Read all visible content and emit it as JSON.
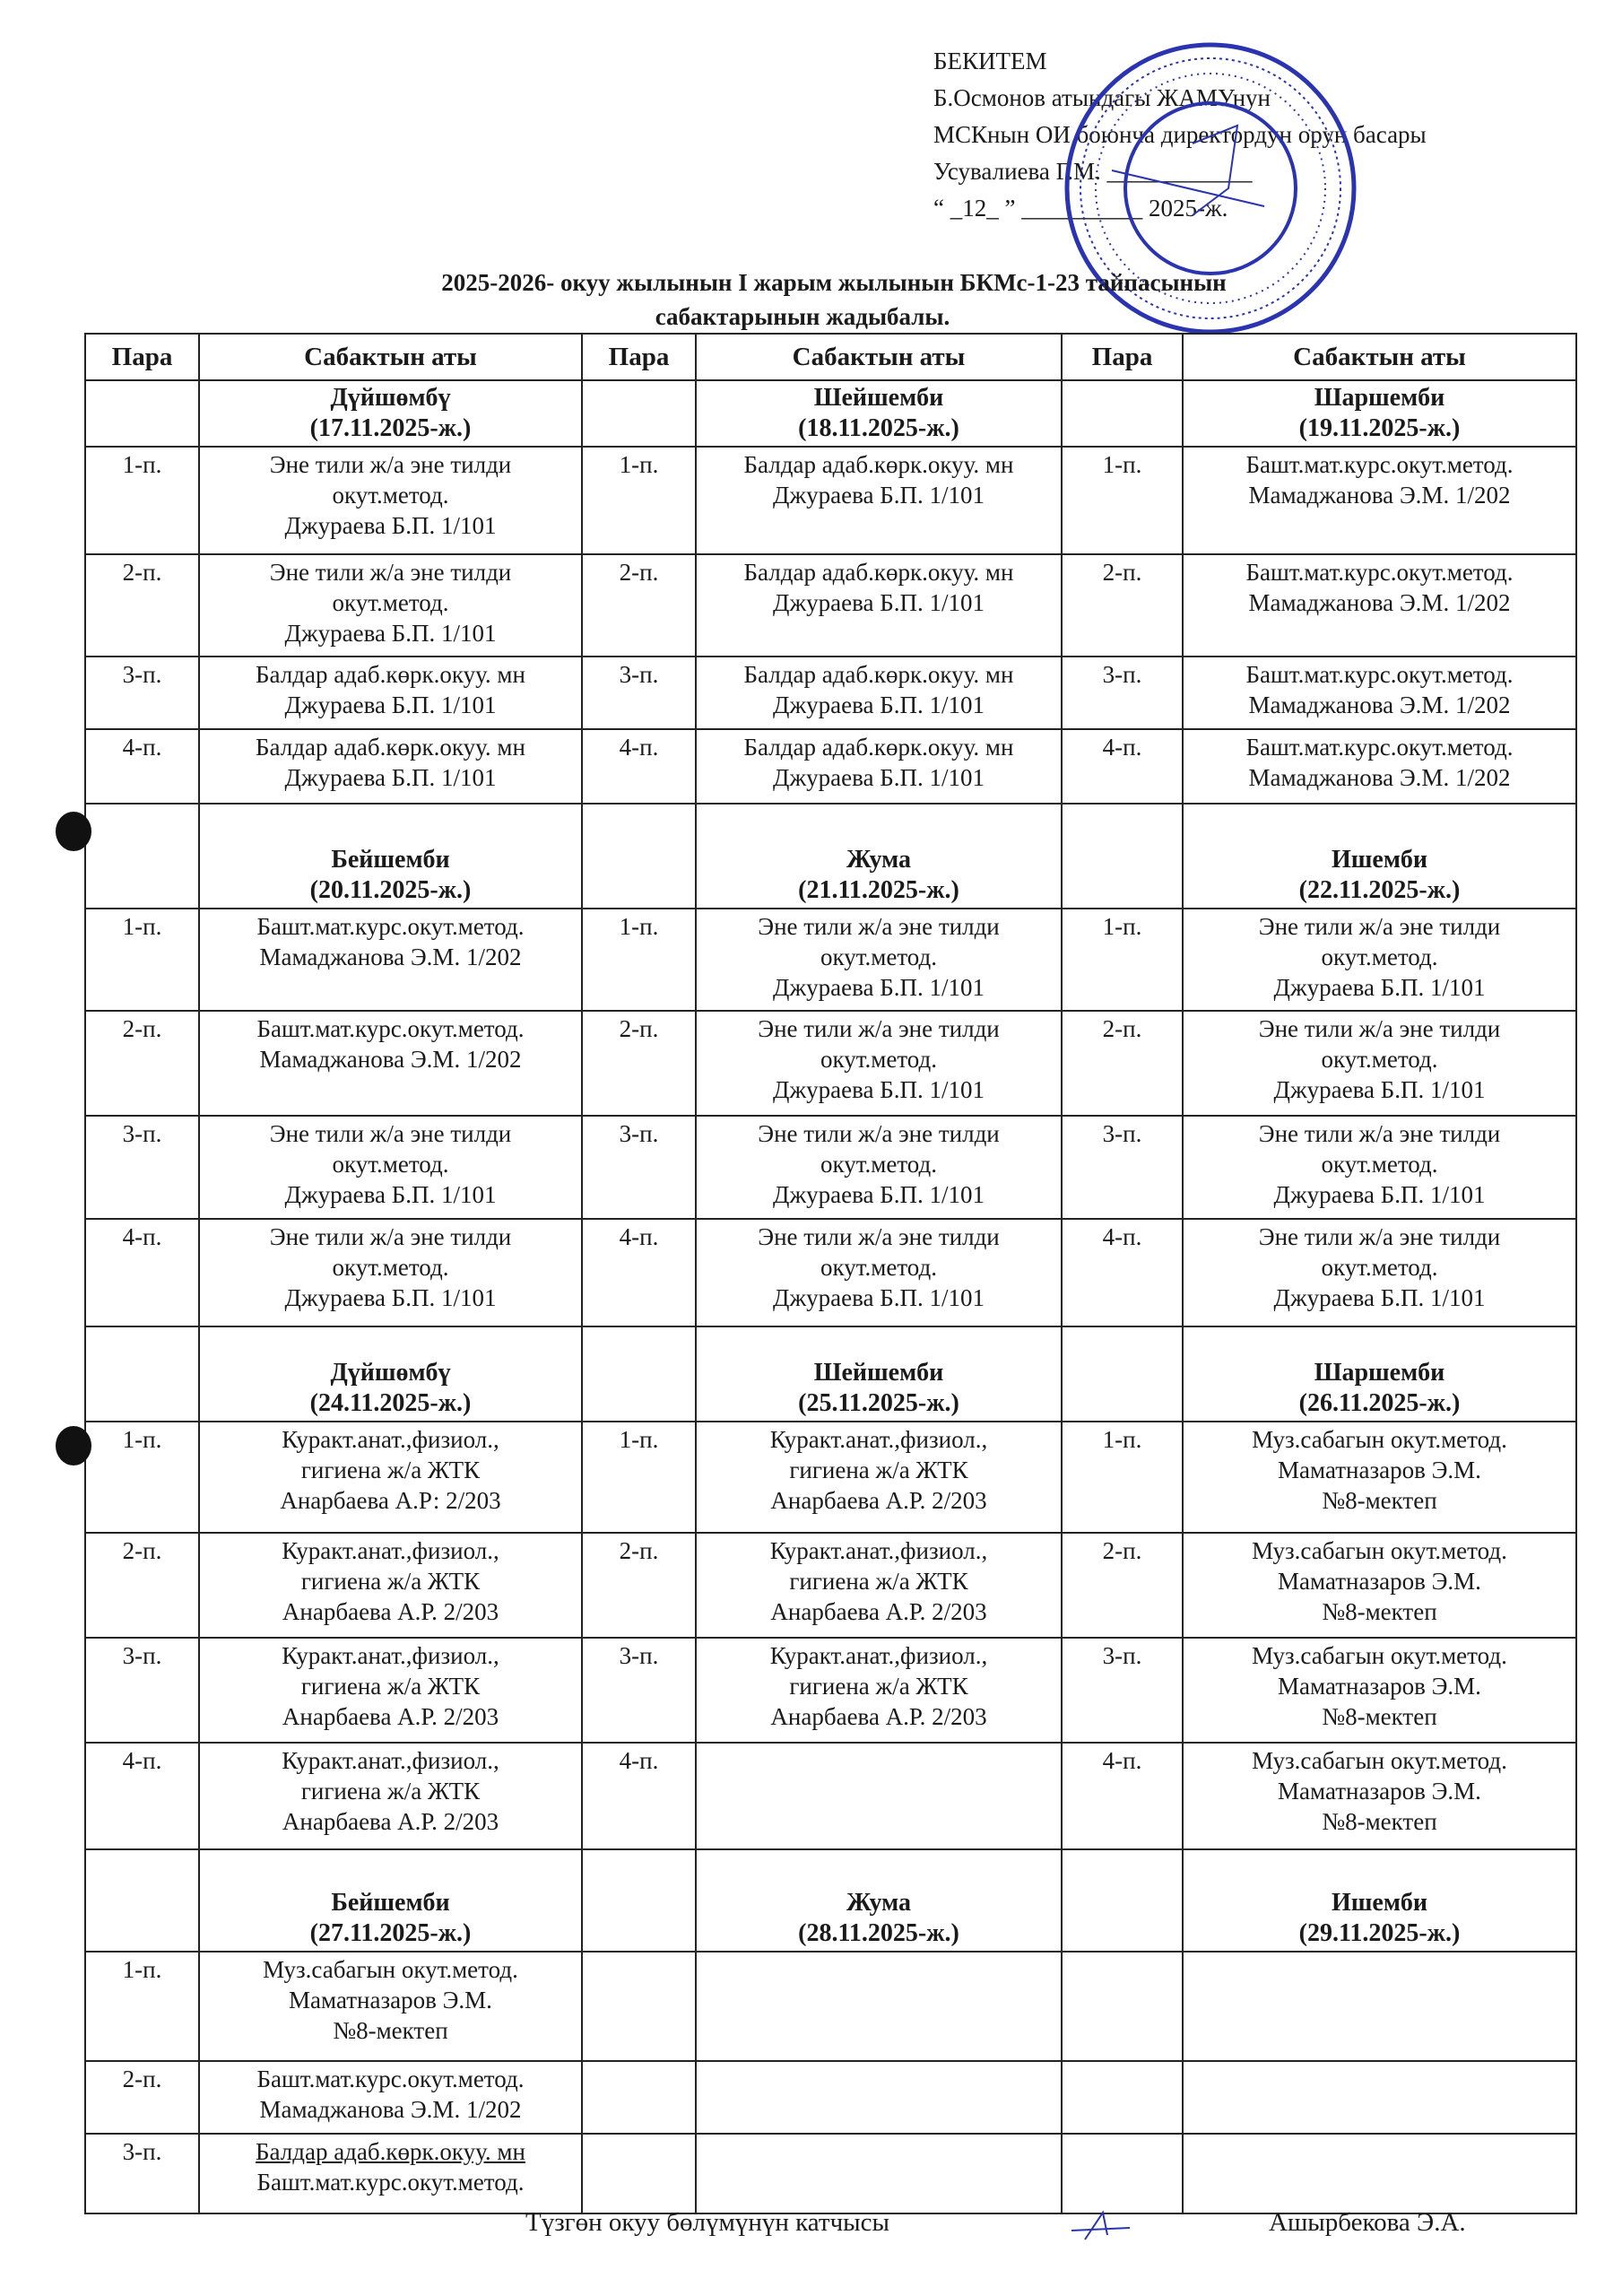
{
  "approval": {
    "lines": [
      "БЕКИТЕМ",
      "Б.Осмонов атындагы ЖАМУнун",
      "МСКнын  ОИ боюнча директордун орун басары",
      "Усувалиева Г.М. ____________",
      "“ _12_ ” __________ 2025-ж."
    ]
  },
  "title": {
    "line1": "2025-2026- окуу жылынын  I жарым жылынын БКМс-1-23 тайпасынын",
    "line2": "сабактарынын  жадыбалы."
  },
  "headers": [
    "Пара",
    "Сабактын аты",
    "Пара",
    "Сабактын аты",
    "Пара",
    "Сабактын аты"
  ],
  "blocks": [
    {
      "days": [
        {
          "name": "Дүйшөмбү",
          "date": "(17.11.2025-ж.)"
        },
        {
          "name": "Шейшемби",
          "date": "(18.11.2025-ж.)"
        },
        {
          "name": "Шаршемби",
          "date": "(19.11.2025-ж.)"
        }
      ],
      "rows": [
        [
          {
            "para": "1-п.",
            "lines": [
              "Эне тили ж/а эне тилди",
              "окут.метод.",
              "Джураева Б.П.  1/101"
            ]
          },
          {
            "para": "1-п.",
            "lines": [
              "Балдар адаб.көрк.окуу. мн",
              "Джураева Б.П.  1/101"
            ]
          },
          {
            "para": "1-п.",
            "lines": [
              "Башт.мат.курс.окут.метод.",
              "Мамаджанова Э.М.  1/202"
            ]
          }
        ],
        [
          {
            "para": "2-п.",
            "lines": [
              "Эне тили ж/а эне тилди",
              "окут.метод.",
              "Джураева Б.П.  1/101"
            ]
          },
          {
            "para": "2-п.",
            "lines": [
              "Балдар адаб.көрк.окуу. мн",
              "Джураева Б.П.  1/101"
            ]
          },
          {
            "para": "2-п.",
            "lines": [
              "Башт.мат.курс.окут.метод.",
              "Мамаджанова Э.М.  1/202"
            ]
          }
        ],
        [
          {
            "para": "3-п.",
            "lines": [
              "Балдар адаб.көрк.окуу. мн",
              "Джураева Б.П.  1/101"
            ]
          },
          {
            "para": "3-п.",
            "lines": [
              "Балдар адаб.көрк.окуу. мн",
              "Джураева Б.П.  1/101"
            ]
          },
          {
            "para": "3-п.",
            "lines": [
              "Башт.мат.курс.окут.метод.",
              "Мамаджанова Э.М.  1/202"
            ]
          }
        ],
        [
          {
            "para": "4-п.",
            "lines": [
              "Балдар адаб.көрк.окуу. мн",
              "Джураева Б.П.  1/101"
            ]
          },
          {
            "para": "4-п.",
            "lines": [
              "Балдар адаб.көрк.окуу. мн",
              "Джураева Б.П.  1/101"
            ]
          },
          {
            "para": "4-п.",
            "lines": [
              "Башт.мат.курс.окут.метод.",
              "Мамаджанова Э.М.  1/202"
            ]
          }
        ]
      ]
    },
    {
      "days": [
        {
          "name": "Бейшемби",
          "date": "(20.11.2025-ж.)"
        },
        {
          "name": "Жума",
          "date": "(21.11.2025-ж.)"
        },
        {
          "name": "Ишемби",
          "date": "(22.11.2025-ж.)"
        }
      ],
      "rows": [
        [
          {
            "para": "1-п.",
            "lines": [
              "Башт.мат.курс.окут.метод.",
              "Мамаджанова Э.М.  1/202"
            ]
          },
          {
            "para": "1-п.",
            "lines": [
              "Эне тили ж/а эне тилди",
              "окут.метод.",
              "Джураева Б.П.  1/101"
            ]
          },
          {
            "para": "1-п.",
            "lines": [
              "Эне тили ж/а эне тилди",
              "окут.метод.",
              "Джураева Б.П.  1/101"
            ]
          }
        ],
        [
          {
            "para": "2-п.",
            "lines": [
              "Башт.мат.курс.окут.метод.",
              "Мамаджанова Э.М.  1/202"
            ]
          },
          {
            "para": "2-п.",
            "lines": [
              "Эне тили ж/а эне тилди",
              "окут.метод.",
              "Джураева Б.П.  1/101"
            ]
          },
          {
            "para": "2-п.",
            "lines": [
              "Эне тили ж/а эне тилди",
              "окут.метод.",
              "Джураева Б.П.  1/101"
            ]
          }
        ],
        [
          {
            "para": "3-п.",
            "lines": [
              "Эне тили ж/а эне тилди",
              "окут.метод.",
              "Джураева Б.П.  1/101"
            ]
          },
          {
            "para": "3-п.",
            "lines": [
              "Эне тили ж/а эне тилди",
              "окут.метод.",
              "Джураева Б.П.  1/101"
            ]
          },
          {
            "para": "3-п.",
            "lines": [
              "Эне тили ж/а эне тилди",
              "окут.метод.",
              "Джураева Б.П.  1/101"
            ]
          }
        ],
        [
          {
            "para": "4-п.",
            "lines": [
              "Эне тили ж/а эне тилди",
              "окут.метод.",
              "Джураева Б.П.  1/101"
            ]
          },
          {
            "para": "4-п.",
            "lines": [
              "Эне тили ж/а эне тилди",
              "окут.метод.",
              "Джураева Б.П.  1/101"
            ]
          },
          {
            "para": "4-п.",
            "lines": [
              "Эне тили ж/а эне тилди",
              "окут.метод.",
              "Джураева Б.П.  1/101"
            ]
          }
        ]
      ]
    },
    {
      "days": [
        {
          "name": "Дүйшөмбү",
          "date": "(24.11.2025-ж.)"
        },
        {
          "name": "Шейшемби",
          "date": "(25.11.2025-ж.)"
        },
        {
          "name": "Шаршемби",
          "date": "(26.11.2025-ж.)"
        }
      ],
      "rows": [
        [
          {
            "para": "1-п.",
            "lines": [
              "Куракт.анат.,физиол.,",
              "гигиена ж/а ЖТК",
              "Анарбаева А.Р:  2/203"
            ]
          },
          {
            "para": "1-п.",
            "lines": [
              "Куракт.анат.,физиол.,",
              "гигиена ж/а ЖТК",
              "Анарбаева А.Р.  2/203"
            ]
          },
          {
            "para": "1-п.",
            "lines": [
              "Муз.сабагын окут.метод.",
              "Маматназаров Э.М.",
              "№8-мектеп"
            ]
          }
        ],
        [
          {
            "para": "2-п.",
            "lines": [
              "Куракт.анат.,физиол.,",
              "гигиена ж/а ЖТК",
              "Анарбаева А.Р.  2/203"
            ]
          },
          {
            "para": "2-п.",
            "lines": [
              "Куракт.анат.,физиол.,",
              "гигиена ж/а ЖТК",
              "Анарбаева А.Р.  2/203"
            ]
          },
          {
            "para": "2-п.",
            "lines": [
              "Муз.сабагын окут.метод.",
              "Маматназаров Э.М.",
              "№8-мектеп"
            ]
          }
        ],
        [
          {
            "para": "3-п.",
            "lines": [
              "Куракт.анат.,физиол.,",
              "гигиена ж/а ЖТК",
              "Анарбаева А.Р.  2/203"
            ]
          },
          {
            "para": "3-п.",
            "lines": [
              "Куракт.анат.,физиол.,",
              "гигиена ж/а ЖТК",
              "Анарбаева А.Р.  2/203"
            ]
          },
          {
            "para": "3-п.",
            "lines": [
              "Муз.сабагын окут.метод.",
              "Маматназаров Э.М.",
              "№8-мектеп"
            ]
          }
        ],
        [
          {
            "para": "4-п.",
            "lines": [
              "Куракт.анат.,физиол.,",
              "гигиена ж/а ЖТК",
              "Анарбаева А.Р.  2/203"
            ]
          },
          {
            "para": "4-п.",
            "lines": []
          },
          {
            "para": "4-п.",
            "lines": [
              "Муз.сабагын окут.метод.",
              "Маматназаров Э.М.",
              "№8-мектеп"
            ]
          }
        ]
      ]
    },
    {
      "days": [
        {
          "name": "Бейшемби",
          "date": "(27.11.2025-ж.)"
        },
        {
          "name": "Жума",
          "date": "(28.11.2025-ж.)"
        },
        {
          "name": "Ишемби",
          "date": "(29.11.2025-ж.)"
        }
      ],
      "rows": [
        [
          {
            "para": "1-п.",
            "lines": [
              "Муз.сабагын окут.метод.",
              "Маматназаров Э.М.",
              "№8-мектеп"
            ]
          },
          {
            "para": "",
            "lines": []
          },
          {
            "para": "",
            "lines": []
          }
        ],
        [
          {
            "para": "2-п.",
            "lines": [
              "Башт.мат.курс.окут.метод.",
              "Мамаджанова Э.М.  1/202"
            ]
          },
          {
            "para": "",
            "lines": []
          },
          {
            "para": "",
            "lines": []
          }
        ],
        [
          {
            "para": "3-п.",
            "lines": [
              "Балдар адаб.көрк.окуу. мн",
              "Башт.мат.курс.окут.метод."
            ]
          },
          {
            "para": "",
            "lines": []
          },
          {
            "para": "",
            "lines": []
          }
        ]
      ]
    }
  ],
  "footer": {
    "role": "Түзгөн окуу бөлүмүнүн катчысы",
    "name": "Ашырбекова Э.А."
  },
  "colors": {
    "stamp": "#2a34b0",
    "ink": "#1a1a1a"
  }
}
